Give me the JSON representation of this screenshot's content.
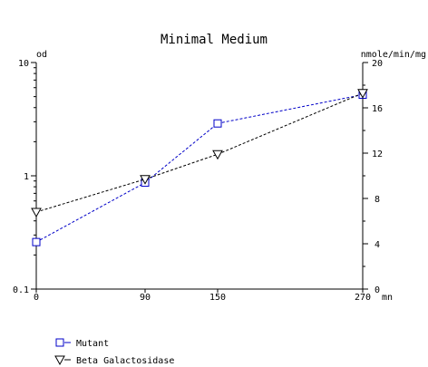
{
  "chart_data": {
    "type": "line",
    "title": "Minimal Medium",
    "x": [
      0,
      90,
      150,
      270
    ],
    "x_ticks": [
      "0",
      "90",
      "150",
      "270"
    ],
    "x_unit_label": "mn",
    "y_left": {
      "label": "od",
      "scale": "log",
      "range": [
        0.1,
        10
      ],
      "ticks": [
        {
          "value": 0.1,
          "label": "0.1"
        },
        {
          "value": 1,
          "label": "1"
        },
        {
          "value": 10,
          "label": "10"
        }
      ]
    },
    "y_right": {
      "label": "nmole/min/mg",
      "scale": "linear",
      "range": [
        0,
        20
      ],
      "ticks": [
        "0",
        "4",
        "8",
        "12",
        "16",
        "20"
      ]
    },
    "series": [
      {
        "name": "Mutant",
        "axis": "left",
        "marker": "square",
        "color": "#0000c8",
        "values": [
          0.26,
          0.87,
          2.9,
          5.2
        ]
      },
      {
        "name": "Beta Galactosidase",
        "axis": "right",
        "marker": "triangle-down",
        "color": "#000000",
        "values": [
          6.8,
          9.7,
          11.9,
          17.3
        ]
      }
    ],
    "legend": {
      "placement": "bottom-left",
      "entries": [
        "Mutant",
        "Beta Galactosidase"
      ]
    },
    "grid": false
  }
}
